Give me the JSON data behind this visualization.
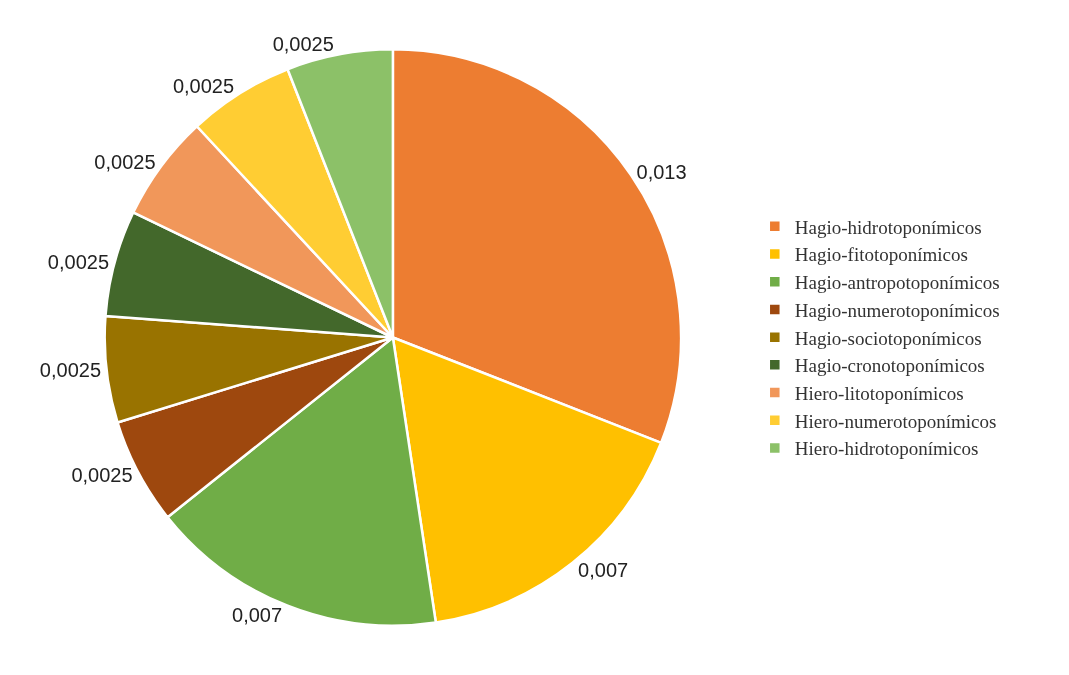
{
  "chart_data": {
    "type": "pie",
    "categories": [
      "Hagio-hidrotoponímicos",
      "Hagio-fitotoponímicos",
      "Hagio-antropotoponímicos",
      "Hagio-numerotoponímicos",
      "Hagio-sociotoponímicos",
      "Hagio-cronotoponímicos",
      "Hiero-litotoponímicos",
      "Hiero-numerotoponímicos",
      "Hiero-hidrotoponímicos"
    ],
    "values": [
      0.013,
      0.007,
      0.007,
      0.0025,
      0.0025,
      0.0025,
      0.0025,
      0.0025,
      0.0025
    ],
    "value_labels": [
      "0,013",
      "0,007",
      "0,007",
      "0,0025",
      "0,0025",
      "0,0025",
      "0,0025",
      "0,0025",
      "0,0025"
    ],
    "colors": [
      "#ed7d31",
      "#ffc000",
      "#70ad47",
      "#9e480e",
      "#997300",
      "#43682b",
      "#f1975a",
      "#ffcd33",
      "#8cc168"
    ],
    "legend": "right"
  }
}
